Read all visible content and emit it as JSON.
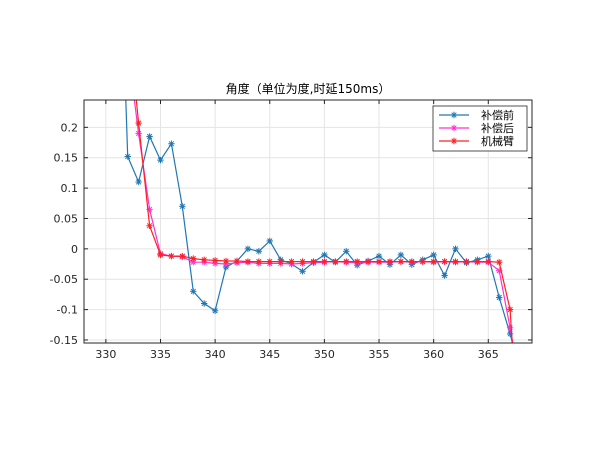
{
  "chart_data": {
    "type": "line",
    "title": "角度（单位为度,时延150ms）",
    "xlabel": "",
    "ylabel": "",
    "xlim": [
      328,
      369
    ],
    "ylim": [
      -0.155,
      0.245
    ],
    "xticks": [
      330,
      335,
      340,
      345,
      350,
      355,
      360,
      365
    ],
    "yticks": [
      0.2,
      0.15,
      0.1,
      0.05,
      0,
      -0.05,
      -0.1,
      -0.15
    ],
    "ytick_labels": [
      "0.2",
      "0.15",
      "0.1",
      "0.05",
      "0",
      "-0.05",
      "-0.1",
      "-0.15"
    ],
    "grid": true,
    "legend_position": "top-right",
    "series": [
      {
        "name": "补偿前",
        "color": "#1f77b4",
        "marker": "*",
        "x": [
          331.8,
          332,
          333,
          334,
          335,
          336,
          337,
          338,
          339,
          340,
          341,
          342,
          343,
          344,
          345,
          346,
          347,
          348,
          349,
          350,
          351,
          352,
          353,
          354,
          355,
          356,
          357,
          358,
          359,
          360,
          361,
          362,
          363,
          364,
          365,
          366,
          367,
          367.3
        ],
        "y": [
          0.26,
          0.152,
          0.11,
          0.185,
          0.146,
          0.173,
          0.07,
          -0.07,
          -0.09,
          -0.102,
          -0.03,
          -0.02,
          0.0,
          -0.004,
          0.013,
          -0.018,
          -0.025,
          -0.037,
          -0.022,
          -0.01,
          -0.022,
          -0.004,
          -0.027,
          -0.02,
          -0.012,
          -0.026,
          -0.01,
          -0.026,
          -0.018,
          -0.01,
          -0.044,
          0.0,
          -0.023,
          -0.018,
          -0.012,
          -0.08,
          -0.14,
          -0.16
        ]
      },
      {
        "name": "补偿后",
        "color": "#ff33cc",
        "marker": "*",
        "x": [
          332.5,
          333,
          334,
          335,
          336,
          337,
          338,
          339,
          340,
          341,
          342,
          343,
          344,
          345,
          346,
          347,
          348,
          349,
          350,
          351,
          352,
          353,
          354,
          355,
          356,
          357,
          358,
          359,
          360,
          361,
          362,
          363,
          364,
          365,
          366,
          367,
          367.3
        ],
        "y": [
          0.26,
          0.19,
          0.065,
          -0.008,
          -0.012,
          -0.013,
          -0.022,
          -0.022,
          -0.024,
          -0.025,
          -0.023,
          -0.022,
          -0.024,
          -0.024,
          -0.024,
          -0.025,
          -0.024,
          -0.023,
          -0.022,
          -0.021,
          -0.022,
          -0.023,
          -0.022,
          -0.022,
          -0.022,
          -0.021,
          -0.022,
          -0.021,
          -0.022,
          -0.021,
          -0.022,
          -0.021,
          -0.022,
          -0.022,
          -0.036,
          -0.13,
          -0.16
        ]
      },
      {
        "name": "机械臂",
        "color": "#ff2020",
        "marker": "*",
        "x": [
          332.7,
          333,
          334,
          335,
          336,
          337,
          338,
          339,
          340,
          341,
          342,
          343,
          344,
          345,
          346,
          347,
          348,
          349,
          350,
          351,
          352,
          353,
          354,
          355,
          356,
          357,
          358,
          359,
          360,
          361,
          362,
          363,
          364,
          365,
          366,
          367,
          367.2
        ],
        "y": [
          0.26,
          0.207,
          0.038,
          -0.01,
          -0.012,
          -0.012,
          -0.016,
          -0.018,
          -0.019,
          -0.02,
          -0.02,
          -0.021,
          -0.021,
          -0.021,
          -0.021,
          -0.021,
          -0.021,
          -0.021,
          -0.021,
          -0.021,
          -0.021,
          -0.021,
          -0.021,
          -0.021,
          -0.021,
          -0.021,
          -0.021,
          -0.021,
          -0.021,
          -0.021,
          -0.021,
          -0.021,
          -0.021,
          -0.021,
          -0.022,
          -0.1,
          -0.16
        ]
      }
    ]
  }
}
